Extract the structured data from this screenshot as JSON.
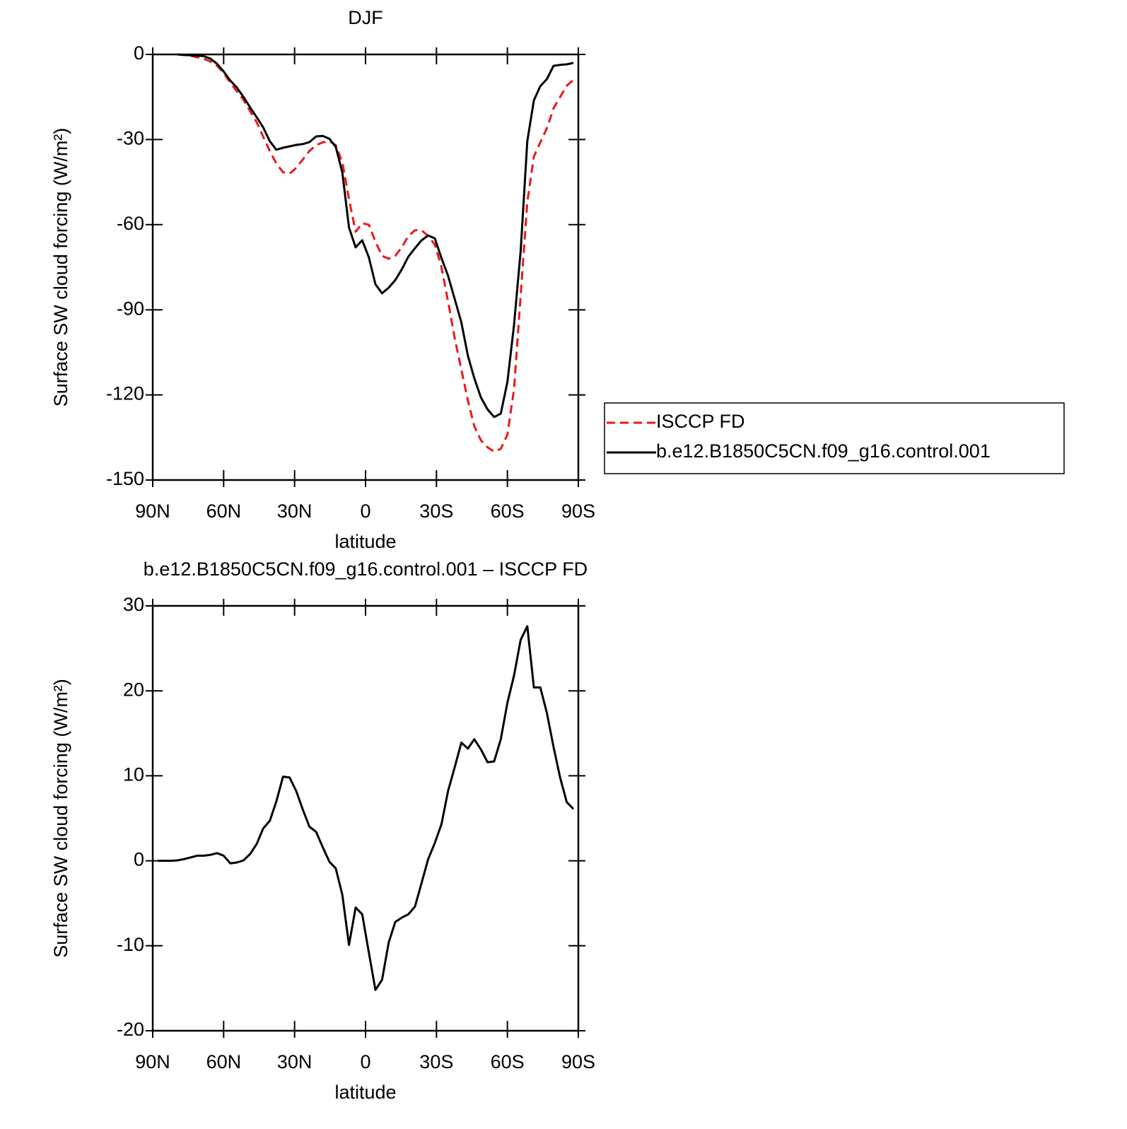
{
  "chart_data": [
    {
      "type": "line",
      "title": "DJF",
      "xlabel": "latitude",
      "ylabel": "Surface SW cloud forcing (W/m²)",
      "x": [
        87.9,
        85.1,
        82.3,
        79.5,
        76.7,
        73.9,
        71.2,
        68.4,
        65.6,
        62.8,
        60,
        57.2,
        54.4,
        51.6,
        48.8,
        46,
        43.3,
        40.5,
        37.7,
        34.9,
        32.1,
        29.3,
        26.5,
        23.7,
        20.9,
        18.1,
        15.3,
        12.6,
        9.8,
        7,
        4.2,
        1.4,
        -1.4,
        -4.2,
        -7,
        -9.8,
        -12.6,
        -15.3,
        -18.1,
        -20.9,
        -23.7,
        -26.5,
        -29.3,
        -32.1,
        -34.9,
        -37.7,
        -40.5,
        -43.3,
        -46,
        -48.8,
        -51.6,
        -54.4,
        -57.2,
        -60,
        -62.8,
        -65.6,
        -68.4,
        -71.2,
        -73.9,
        -76.7,
        -79.5,
        -82.3,
        -85.1,
        -87.9
      ],
      "xlim": [
        90,
        -90
      ],
      "xticks": [
        {
          "value": 90,
          "label": "90N"
        },
        {
          "value": 60,
          "label": "60N"
        },
        {
          "value": 30,
          "label": "30N"
        },
        0,
        {
          "value": -30,
          "label": "30S"
        },
        {
          "value": -60,
          "label": "60S"
        },
        {
          "value": -90,
          "label": "90S"
        }
      ],
      "ylim": [
        -150,
        0
      ],
      "yticks": [
        -150,
        -120,
        -90,
        -60,
        -30,
        0
      ],
      "grid": false,
      "legend": "right",
      "series": [
        {
          "name": "ISCCP FD",
          "color": "#e8191b",
          "linestyle": "dashed",
          "values": [
            null,
            null,
            null,
            0,
            -0.2,
            -0.5,
            -1,
            -1.5,
            -2.5,
            -4,
            -6.5,
            -10,
            -13,
            -16,
            -20,
            -24,
            -29,
            -34,
            -38.5,
            -41.5,
            -42,
            -40,
            -37,
            -34,
            -32,
            -31,
            -30.5,
            -32,
            -38,
            -51,
            -62.5,
            -59.5,
            -60,
            -66,
            -71,
            -72,
            -71,
            -68,
            -64,
            -62,
            -62,
            -64,
            -67,
            -75,
            -87,
            -100,
            -111,
            -122,
            -131,
            -136,
            -138.5,
            -140,
            -139,
            -134,
            -118,
            -85,
            -52,
            -36,
            -31,
            -26,
            -19,
            -15,
            -11,
            -9
          ]
        },
        {
          "name": "b.e12.B1850C5CN.f09_g16.control.001",
          "color": "#000000",
          "linestyle": "solid",
          "values": [
            null,
            null,
            null,
            0,
            -0.2,
            -0.3,
            -0.4,
            -0.6,
            -1.5,
            -3.3,
            -6,
            -9.2,
            -11.7,
            -15,
            -18.7,
            -22.2,
            -25.7,
            -30.6,
            -33.6,
            -32.9,
            -32.4,
            -31.9,
            -31.6,
            -30.9,
            -28.9,
            -28.7,
            -29.7,
            -32.6,
            -41.6,
            -61,
            -68,
            -65.5,
            -71.5,
            -81,
            -84.2,
            -82.2,
            -79.5,
            -75.8,
            -71.3,
            -68.3,
            -65.5,
            -63.8,
            -64.8,
            -71.8,
            -78,
            -86.2,
            -94.4,
            -106.2,
            -114.1,
            -120.9,
            -125.1,
            -127.8,
            -126.6,
            -115.4,
            -95.4,
            -69.3,
            -30.6,
            -16.2,
            -11.2,
            -8.7,
            -4,
            -3.7,
            -3.5,
            -3
          ]
        }
      ]
    },
    {
      "type": "line",
      "title": "b.e12.B1850C5CN.f09_g16.control.001 – ISCCP FD",
      "xlabel": "latitude",
      "ylabel": "Surface SW cloud forcing (W/m²)",
      "x": [
        87.9,
        85.1,
        82.3,
        79.5,
        76.7,
        73.9,
        71.2,
        68.4,
        65.6,
        62.8,
        60,
        57.2,
        54.4,
        51.6,
        48.8,
        46,
        43.3,
        40.5,
        37.7,
        34.9,
        32.1,
        29.3,
        26.5,
        23.7,
        20.9,
        18.1,
        15.3,
        12.6,
        9.8,
        7,
        4.2,
        1.4,
        -1.4,
        -4.2,
        -7,
        -9.8,
        -12.6,
        -15.3,
        -18.1,
        -20.9,
        -23.7,
        -26.5,
        -29.3,
        -32.1,
        -34.9,
        -37.7,
        -40.5,
        -43.3,
        -46,
        -48.8,
        -51.6,
        -54.4,
        -57.2,
        -60,
        -62.8,
        -65.6,
        -68.4,
        -71.2,
        -73.9,
        -76.7,
        -79.5,
        -82.3,
        -85.1,
        -87.9
      ],
      "xlim": [
        90,
        -90
      ],
      "xticks": [
        {
          "value": 90,
          "label": "90N"
        },
        {
          "value": 60,
          "label": "60N"
        },
        {
          "value": 30,
          "label": "30N"
        },
        0,
        {
          "value": -30,
          "label": "30S"
        },
        {
          "value": -60,
          "label": "60S"
        },
        {
          "value": -90,
          "label": "90S"
        }
      ],
      "ylim": [
        -20,
        30
      ],
      "yticks": [
        -20,
        -10,
        0,
        10,
        20,
        30
      ],
      "grid": false,
      "color": "#000000",
      "values": [
        0,
        0,
        0,
        0.05,
        0.2,
        0.4,
        0.6,
        0.6,
        0.7,
        0.9,
        0.6,
        -0.3,
        -0.2,
        0.05,
        0.8,
        2,
        3.8,
        4.7,
        7,
        9.9,
        9.8,
        8.2,
        6,
        4,
        3.4,
        1.6,
        -0.1,
        -0.9,
        -4,
        -9.9,
        -5.5,
        -6.3,
        -10.8,
        -15.2,
        -14,
        -9.6,
        -7.2,
        -6.7,
        -6.3,
        -5.4,
        -2.6,
        0.2,
        2.1,
        4.3,
        8.2,
        11,
        13.9,
        13.2,
        14.3,
        13.1,
        11.6,
        11.7,
        14.3,
        18.6,
        21.8,
        26,
        27.6,
        20.4,
        20.4,
        17.4,
        13.4,
        9.8,
        6.9,
        6.1
      ]
    }
  ]
}
